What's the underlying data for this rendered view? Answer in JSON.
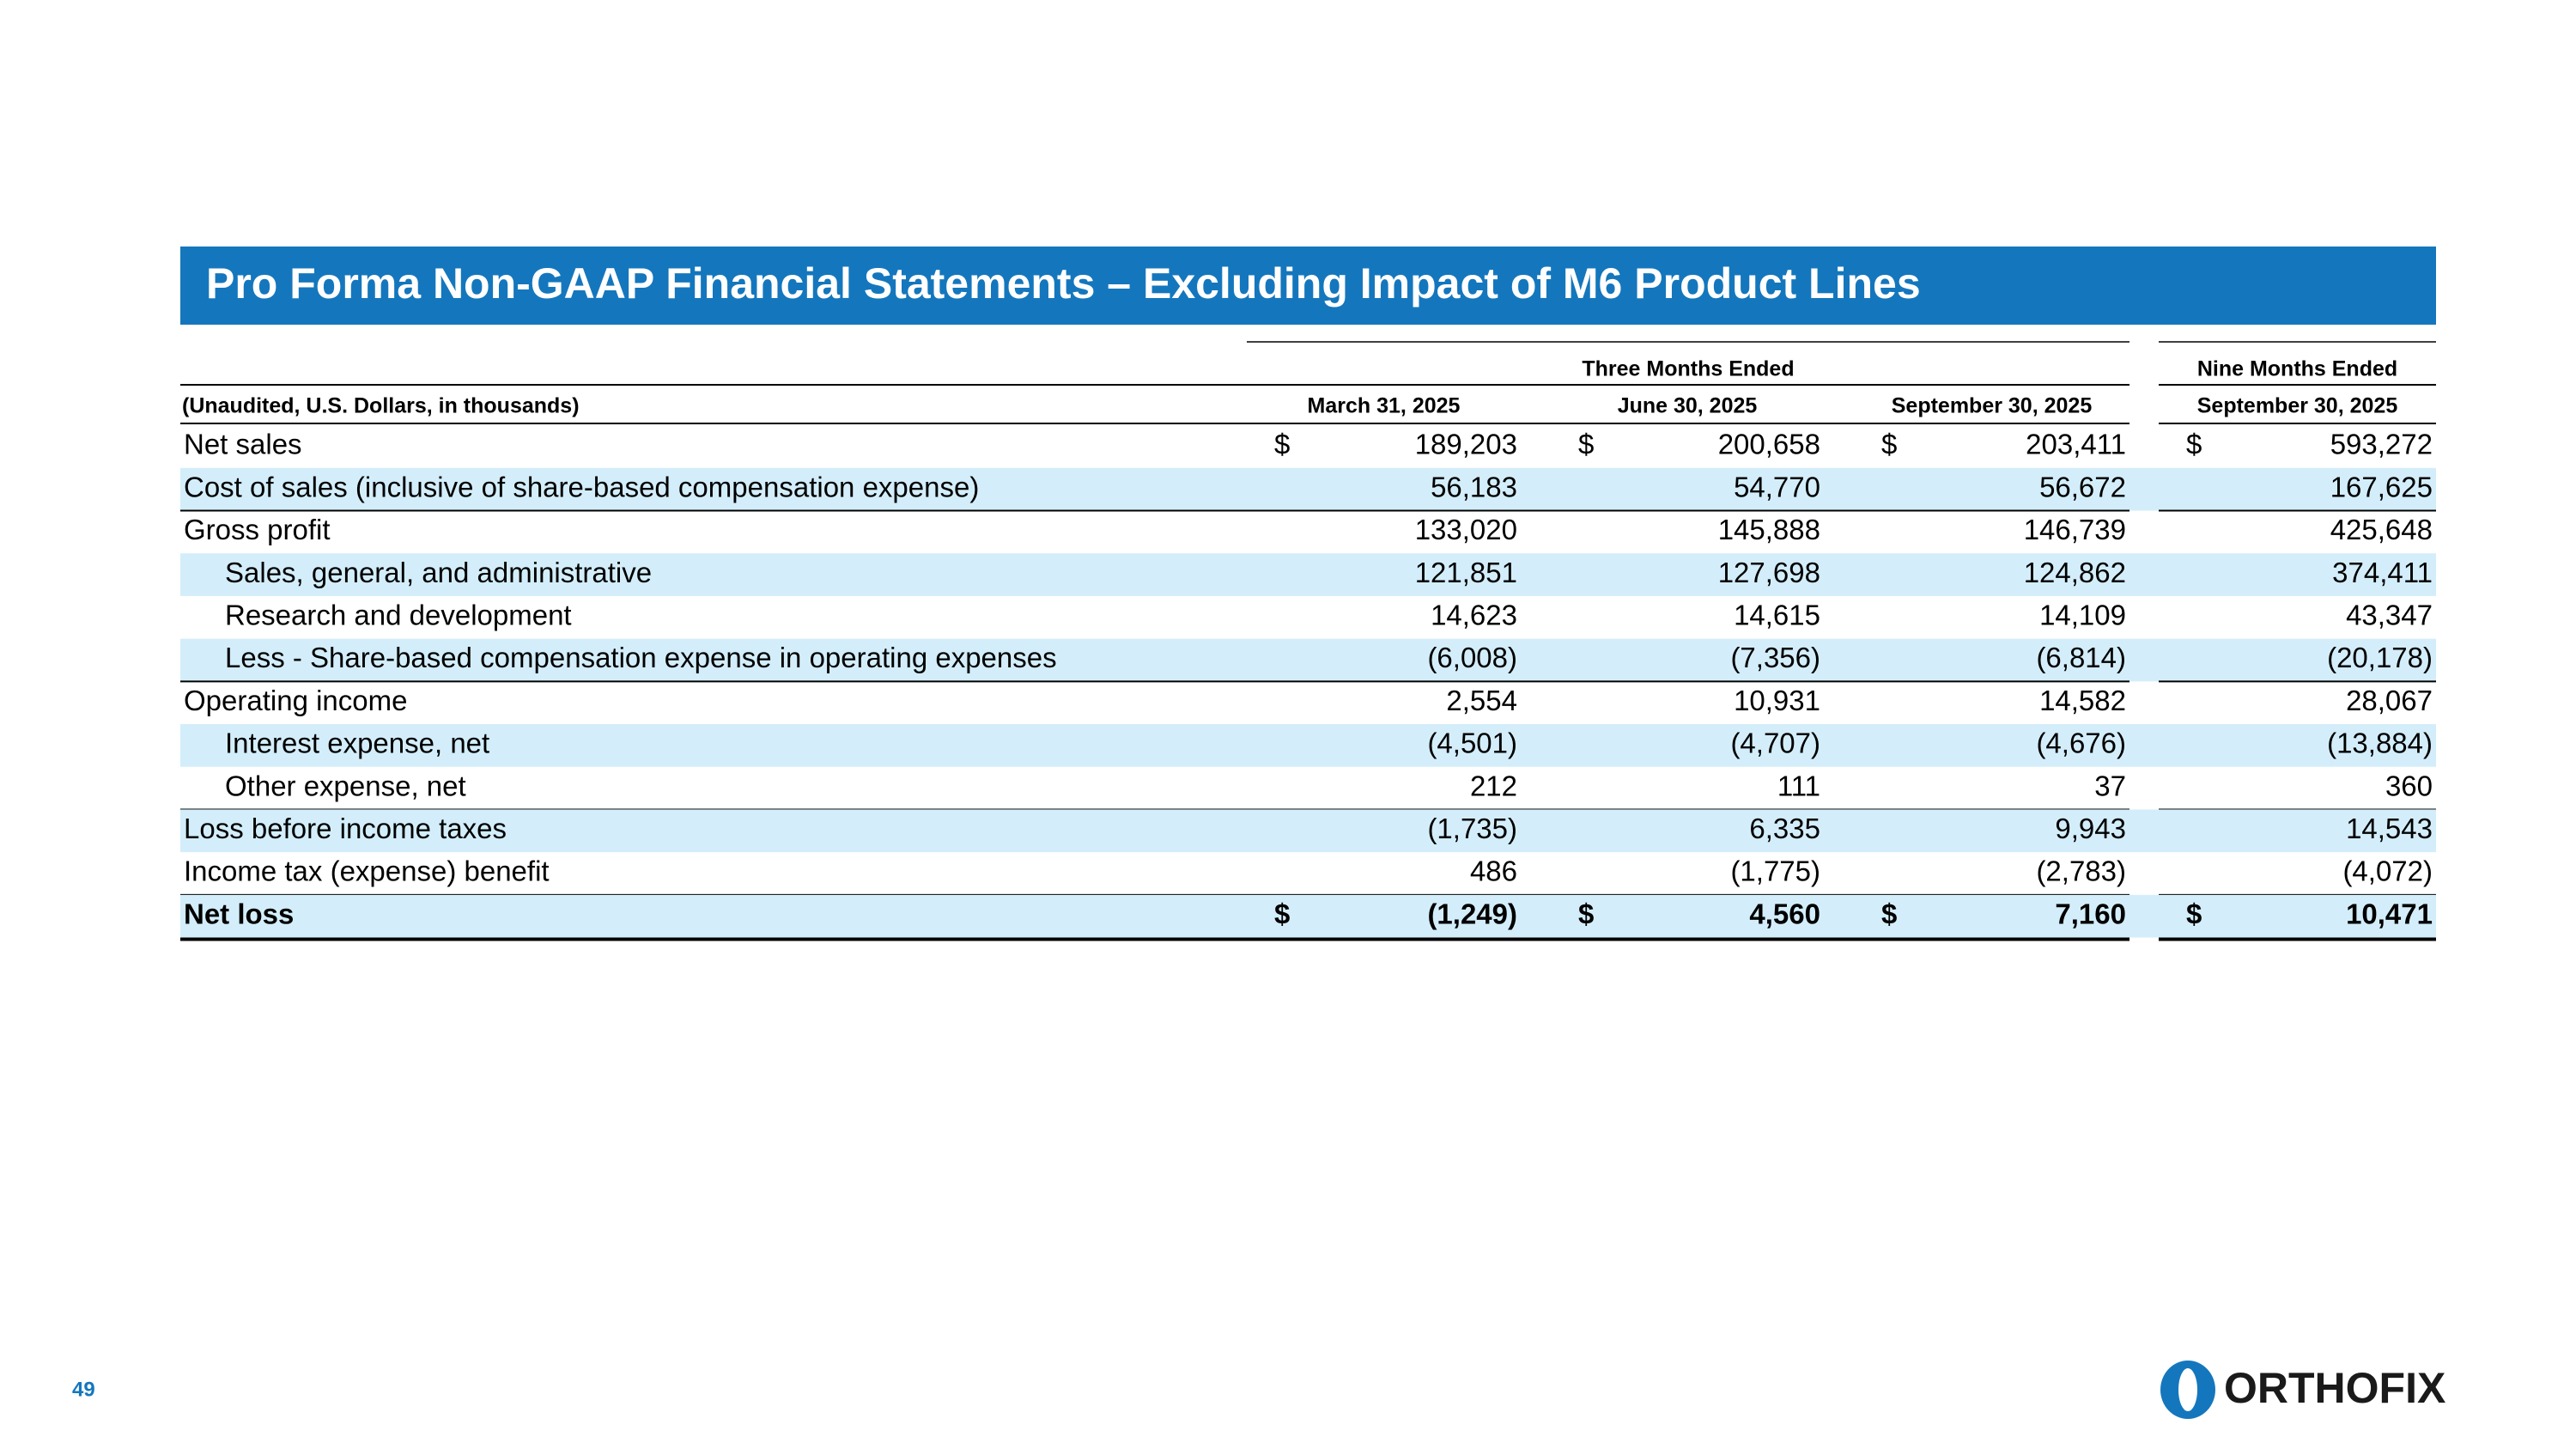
{
  "title": "Pro Forma Non-GAAP Financial Statements – Excluding Impact of M6 Product Lines",
  "table": {
    "header_group": [
      "Three Months Ended",
      "Nine Months Ended"
    ],
    "columns": [
      "(Unaudited, U.S. Dollars, in thousands)",
      "March 31, 2025",
      "June 30, 2025",
      "September 30, 2025",
      "September 30, 2025"
    ],
    "rows": [
      {
        "label": "Net sales",
        "currency": "$",
        "values": [
          "189,203",
          "200,658",
          "203,411",
          "593,272"
        ]
      },
      {
        "label": "Cost of sales (inclusive of share-based compensation expense)",
        "values": [
          "56,183",
          "54,770",
          "56,672",
          "167,625"
        ]
      },
      {
        "label": "Gross profit",
        "values": [
          "133,020",
          "145,888",
          "146,739",
          "425,648"
        ]
      },
      {
        "label": "Sales, general, and administrative",
        "values": [
          "121,851",
          "127,698",
          "124,862",
          "374,411"
        ]
      },
      {
        "label": "Research and development",
        "values": [
          "14,623",
          "14,615",
          "14,109",
          "43,347"
        ]
      },
      {
        "label": "Less - Share-based compensation expense in operating expenses",
        "values": [
          "(6,008)",
          "(7,356)",
          "(6,814)",
          "(20,178)"
        ]
      },
      {
        "label": "Operating income",
        "values": [
          "2,554",
          "10,931",
          "14,582",
          "28,067"
        ]
      },
      {
        "label": "Interest expense, net",
        "values": [
          "(4,501)",
          "(4,707)",
          "(4,676)",
          "(13,884)"
        ]
      },
      {
        "label": "Other expense, net",
        "values": [
          "212",
          "111",
          "37",
          "360"
        ]
      },
      {
        "label": "Loss before income taxes",
        "values": [
          "(1,735)",
          "6,335",
          "9,943",
          "14,543"
        ]
      },
      {
        "label": "Income tax (expense) benefit",
        "values": [
          "486",
          "(1,775)",
          "(2,783)",
          "(4,072)"
        ]
      },
      {
        "label": "Net loss",
        "currency": "$",
        "values": [
          "(1,249)",
          "4,560",
          "7,160",
          "10,471"
        ]
      }
    ]
  },
  "page_number": "49",
  "logo": "ORTHOFIX"
}
